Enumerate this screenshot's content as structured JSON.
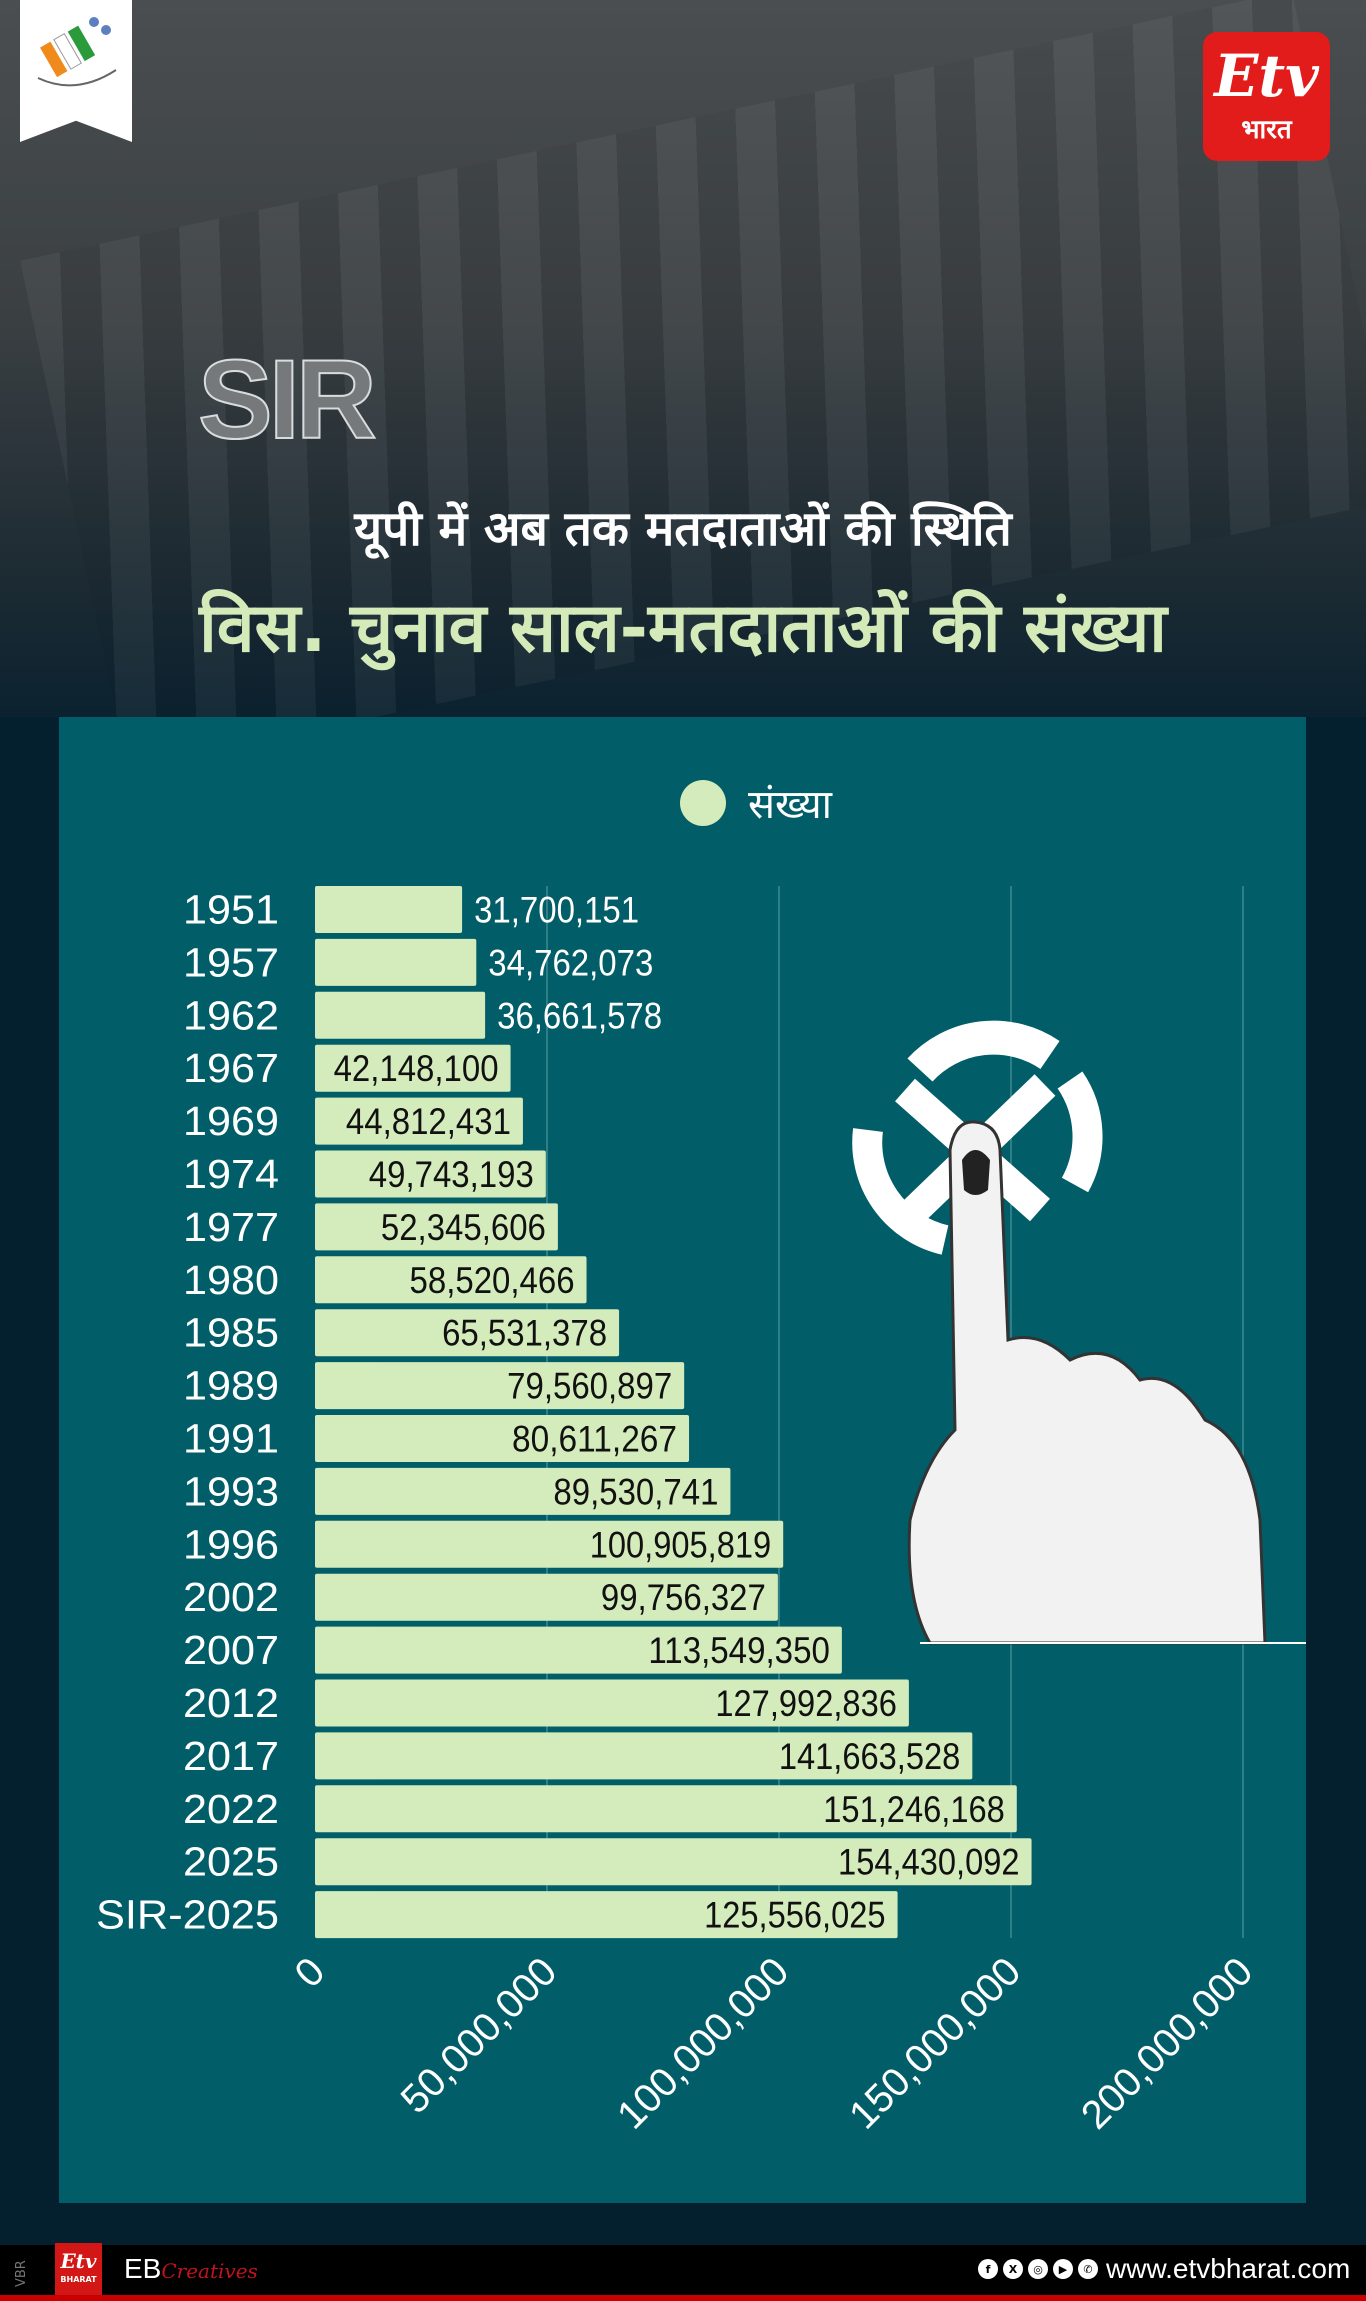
{
  "header": {
    "watermark": "SIR",
    "subtitle": "यूपी में अब तक मतदाताओं की स्थिति",
    "title": "विस. चुनाव साल-मतदाताओं की संख्या",
    "etv_logo": {
      "mark": "Etv",
      "text": "भारत"
    }
  },
  "chart_data": {
    "type": "bar",
    "orientation": "horizontal",
    "legend": {
      "label": "संख्या",
      "position": "top"
    },
    "categories": [
      "1951",
      "1957",
      "1962",
      "1967",
      "1969",
      "1974",
      "1977",
      "1980",
      "1985",
      "1989",
      "1991",
      "1993",
      "1996",
      "2002",
      "2007",
      "2012",
      "2017",
      "2022",
      "2025",
      "SIR-2025"
    ],
    "values": [
      31700151,
      34762073,
      36661578,
      42148100,
      44812431,
      49743193,
      52345606,
      58520466,
      65531378,
      79560897,
      80611267,
      89530741,
      100905819,
      99756327,
      113549350,
      127992836,
      141663528,
      151246168,
      154430092,
      125556025
    ],
    "value_labels": [
      "31,700,151",
      "34,762,073",
      "36,661,578",
      "42,148,100",
      "44,812,431",
      "49,743,193",
      "52,345,606",
      "58,520,466",
      "65,531,378",
      "79,560,897",
      "80,611,267",
      "89,530,741",
      "100,905,819",
      "99,756,327",
      "113,549,350",
      "127,992,836",
      "141,663,528",
      "151,246,168",
      "154,430,092",
      "125,556,025"
    ],
    "xlim": [
      0,
      200000000
    ],
    "x_ticks": [
      0,
      50000000,
      100000000,
      150000000,
      200000000
    ],
    "x_tick_labels": [
      "0",
      "50,000,000",
      "100,000,000",
      "150,000,000",
      "200,000,000"
    ],
    "grid": "vertical",
    "bar_color": "#d4ebbb",
    "background": "#015e69"
  },
  "footer": {
    "side_label": "VBR",
    "brand_mark": "Etv",
    "brand_sub": "BHARAT",
    "eb": "EB",
    "eb_script": "Creatives",
    "social_icons": [
      "facebook-icon",
      "x-icon",
      "instagram-icon",
      "youtube-icon",
      "whatsapp-icon"
    ],
    "url": "www.etvbharat.com"
  }
}
